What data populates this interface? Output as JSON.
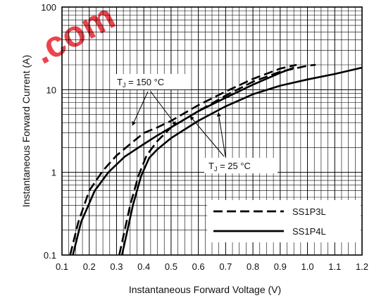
{
  "chart_data": {
    "type": "line",
    "title": "",
    "xlabel": "Instantaneous Forward Voltage (V)",
    "ylabel": "Instantaneous Forward Current (A)",
    "xlim": [
      0.1,
      1.2
    ],
    "ylim": [
      0.1,
      100
    ],
    "yscale": "log",
    "grid": true,
    "legend_position": "bottom-right",
    "x_tick_labels": [
      "0.1",
      "0.2",
      "0.3",
      "0.4",
      "0.5",
      "0.6",
      "0.7",
      "0.8",
      "0.9",
      "1.0",
      "1.1",
      "1.2"
    ],
    "y_tick_labels": [
      "0.1",
      "1",
      "10",
      "100"
    ],
    "watermark": ".com",
    "annotations": [
      {
        "id": "tj150",
        "sub": "J",
        "value": " = 150 °C"
      },
      {
        "id": "tj25",
        "sub": "J",
        "value": " = 25 °C"
      }
    ],
    "series": [
      {
        "name": "SS1P3L",
        "style": "dashed",
        "condition": "150C",
        "points": [
          [
            0.13,
            0.1
          ],
          [
            0.16,
            0.25
          ],
          [
            0.2,
            0.6
          ],
          [
            0.25,
            1.05
          ],
          [
            0.3,
            1.6
          ],
          [
            0.35,
            2.2
          ],
          [
            0.4,
            3.0
          ],
          [
            0.45,
            3.5
          ],
          [
            0.5,
            4.2
          ],
          [
            0.6,
            6.5
          ],
          [
            0.7,
            9.5
          ],
          [
            0.8,
            13.5
          ],
          [
            0.9,
            18
          ],
          [
            0.96,
            20
          ]
        ]
      },
      {
        "name": "SS1P4L",
        "style": "solid",
        "condition": "150C",
        "points": [
          [
            0.14,
            0.1
          ],
          [
            0.17,
            0.25
          ],
          [
            0.22,
            0.6
          ],
          [
            0.27,
            1.0
          ],
          [
            0.33,
            1.55
          ],
          [
            0.4,
            2.2
          ],
          [
            0.45,
            2.8
          ],
          [
            0.5,
            3.5
          ],
          [
            0.6,
            5.5
          ],
          [
            0.7,
            8.0
          ],
          [
            0.8,
            11.5
          ],
          [
            0.9,
            16
          ],
          [
            0.95,
            18.5
          ]
        ]
      },
      {
        "name": "SS1P3L",
        "style": "dashed",
        "condition": "25C",
        "points": [
          [
            0.31,
            0.1
          ],
          [
            0.35,
            0.4
          ],
          [
            0.38,
            0.9
          ],
          [
            0.41,
            1.6
          ],
          [
            0.45,
            2.4
          ],
          [
            0.5,
            3.5
          ],
          [
            0.6,
            5.5
          ],
          [
            0.7,
            8.5
          ],
          [
            0.8,
            12.5
          ],
          [
            0.9,
            16.5
          ],
          [
            1.0,
            19.5
          ],
          [
            1.03,
            20
          ]
        ]
      },
      {
        "name": "SS1P4L",
        "style": "solid",
        "condition": "25C",
        "points": [
          [
            0.32,
            0.1
          ],
          [
            0.36,
            0.4
          ],
          [
            0.39,
            0.9
          ],
          [
            0.42,
            1.5
          ],
          [
            0.45,
            1.9
          ],
          [
            0.5,
            2.6
          ],
          [
            0.6,
            4.2
          ],
          [
            0.7,
            6.3
          ],
          [
            0.8,
            8.8
          ],
          [
            0.9,
            11.2
          ],
          [
            1.0,
            13.3
          ],
          [
            1.1,
            15.5
          ],
          [
            1.2,
            18.5
          ]
        ]
      }
    ]
  }
}
